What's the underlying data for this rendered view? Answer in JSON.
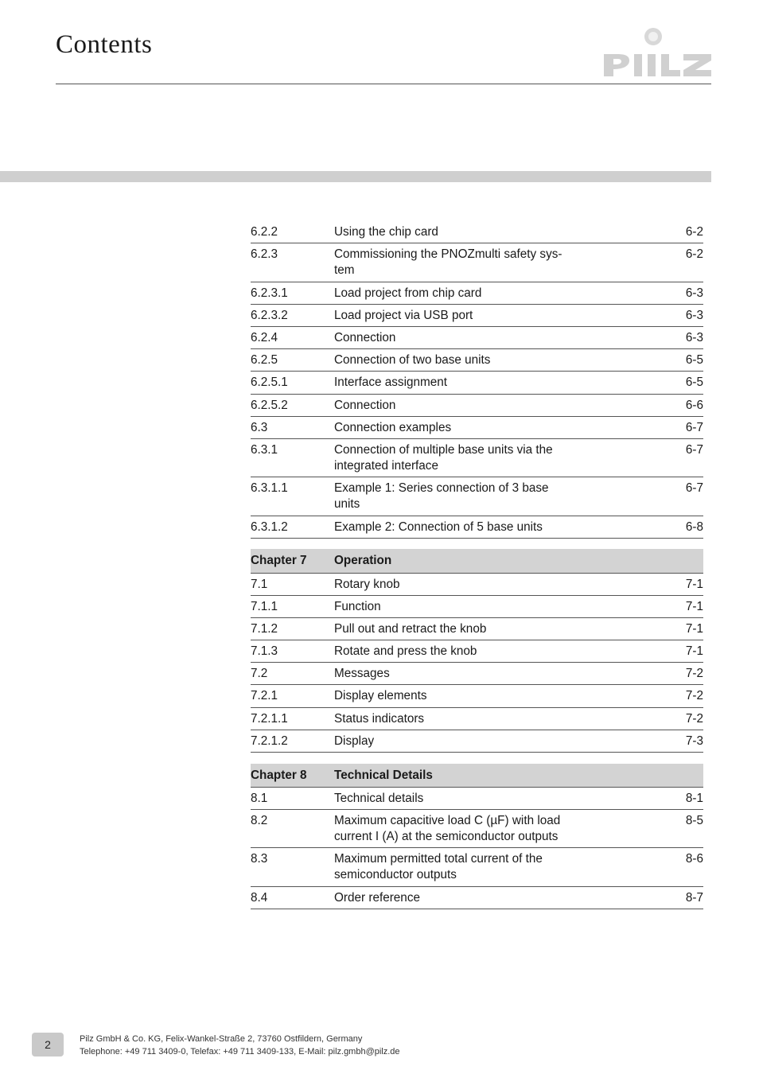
{
  "header": {
    "title": "Contents"
  },
  "logo": {
    "fill": "#d0d0d0",
    "accent": "#d0d0d0"
  },
  "toc_block1": [
    {
      "num": "6.2.2",
      "title": "Using the chip card",
      "page": "6-2"
    },
    {
      "num": "6.2.3",
      "title": "Commissioning the PNOZmulti safety system",
      "page": "6-2",
      "wrap": true,
      "title_line1": "Commissioning the PNOZmulti safety sys-",
      "title_line2": "tem"
    },
    {
      "num": "6.2.3.1",
      "title": "Load project from chip card",
      "page": "6-3"
    },
    {
      "num": "6.2.3.2",
      "title": "Load project via USB port",
      "page": "6-3"
    },
    {
      "num": "6.2.4",
      "title": "Connection",
      "page": "6-3"
    },
    {
      "num": "6.2.5",
      "title": "Connection of two base units",
      "page": "6-5"
    },
    {
      "num": "6.2.5.1",
      "title": "Interface assignment",
      "page": "6-5"
    },
    {
      "num": "6.2.5.2",
      "title": "Connection",
      "page": "6-6"
    },
    {
      "num": "6.3",
      "title": "Connection examples",
      "page": "6-7"
    },
    {
      "num": "6.3.1",
      "title": "Connection of multiple base units via the integrated interface",
      "page": "6-7",
      "wrap": true,
      "title_line1": "Connection of multiple base units via the",
      "title_line2": "integrated interface"
    },
    {
      "num": "6.3.1.1",
      "title": "Example 1: Series connection of 3 base units",
      "page": "6-7",
      "wrap": true,
      "title_line1": "Example 1: Series connection of 3 base",
      "title_line2": "units"
    },
    {
      "num": "6.3.1.2",
      "title": "Example 2: Connection of 5 base units",
      "page": "6-8"
    }
  ],
  "chapter7": {
    "label": "Chapter 7",
    "name": "Operation",
    "rows": [
      {
        "num": "7.1",
        "title": "Rotary knob",
        "page": "7-1"
      },
      {
        "num": "7.1.1",
        "title": "Function",
        "page": "7-1"
      },
      {
        "num": "7.1.2",
        "title": "Pull out and retract the knob",
        "page": "7-1"
      },
      {
        "num": "7.1.3",
        "title": "Rotate and press the knob",
        "page": "7-1"
      },
      {
        "num": "7.2",
        "title": "Messages",
        "page": "7-2"
      },
      {
        "num": "7.2.1",
        "title": "Display elements",
        "page": "7-2"
      },
      {
        "num": "7.2.1.1",
        "title": "Status indicators",
        "page": "7-2"
      },
      {
        "num": "7.2.1.2",
        "title": "Display",
        "page": "7-3"
      }
    ]
  },
  "chapter8": {
    "label": "Chapter 8",
    "name": "Technical Details",
    "rows": [
      {
        "num": "8.1",
        "title": "Technical details",
        "page": "8-1"
      },
      {
        "num": "8.2",
        "title": "Maximum capacitive load C (µF) with load current I (A) at the semiconductor outputs",
        "page": "8-5",
        "wrap": true,
        "title_line1": "Maximum capacitive load C (µF) with load",
        "title_line2": "current I (A) at the semiconductor outputs"
      },
      {
        "num": "8.3",
        "title": "Maximum permitted total current of the semiconductor outputs",
        "page": "8-6",
        "wrap": true,
        "title_line1": "Maximum permitted total current of the",
        "title_line2": "semiconductor outputs"
      },
      {
        "num": "8.4",
        "title": "Order reference",
        "page": "8-7"
      }
    ]
  },
  "footer": {
    "page_number": "2",
    "line1": "Pilz GmbH & Co. KG, Felix-Wankel-Straße 2, 73760 Ostfildern, Germany",
    "line2": "Telephone: +49 711 3409-0, Telefax: +49 711 3409-133, E-Mail: pilz.gmbh@pilz.de"
  }
}
